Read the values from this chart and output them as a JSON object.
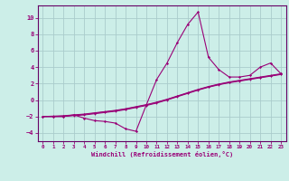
{
  "xlabel": "Windchill (Refroidissement éolien,°C)",
  "background_color": "#cceee8",
  "grid_color": "#aacccc",
  "line_color": "#990077",
  "spine_color": "#660066",
  "xlim": [
    -0.5,
    23.5
  ],
  "ylim": [
    -5,
    11.5
  ],
  "xticks": [
    0,
    1,
    2,
    3,
    4,
    5,
    6,
    7,
    8,
    9,
    10,
    11,
    12,
    13,
    14,
    15,
    16,
    17,
    18,
    19,
    20,
    21,
    22,
    23
  ],
  "yticks": [
    -4,
    -2,
    0,
    2,
    4,
    6,
    8,
    10
  ],
  "x": [
    0,
    1,
    2,
    3,
    4,
    5,
    6,
    7,
    8,
    9,
    10,
    11,
    12,
    13,
    14,
    15,
    16,
    17,
    18,
    19,
    20,
    21,
    22,
    23
  ],
  "y_main": [
    -2,
    -2,
    -2,
    -1.8,
    -2.2,
    -2.5,
    -2.6,
    -2.8,
    -3.5,
    -3.8,
    -0.6,
    2.5,
    4.5,
    7.0,
    9.2,
    10.7,
    5.2,
    3.7,
    2.8,
    2.8,
    3.0,
    4.0,
    4.5,
    3.2
  ],
  "y_line1": [
    -2,
    -2,
    -1.95,
    -1.85,
    -1.75,
    -1.6,
    -1.45,
    -1.3,
    -1.1,
    -0.85,
    -0.6,
    -0.3,
    0.05,
    0.45,
    0.85,
    1.25,
    1.6,
    1.9,
    2.15,
    2.35,
    2.55,
    2.75,
    2.95,
    3.15
  ],
  "y_line2": [
    -2,
    -1.95,
    -1.9,
    -1.8,
    -1.7,
    -1.55,
    -1.4,
    -1.25,
    -1.05,
    -0.8,
    -0.55,
    -0.25,
    0.1,
    0.5,
    0.9,
    1.3,
    1.65,
    1.95,
    2.2,
    2.4,
    2.6,
    2.8,
    3.0,
    3.2
  ],
  "y_line3": [
    -2,
    -2,
    -2,
    -1.9,
    -1.82,
    -1.67,
    -1.52,
    -1.37,
    -1.17,
    -0.92,
    -0.67,
    -0.37,
    0.0,
    0.4,
    0.8,
    1.2,
    1.55,
    1.85,
    2.1,
    2.3,
    2.5,
    2.7,
    2.9,
    3.1
  ]
}
